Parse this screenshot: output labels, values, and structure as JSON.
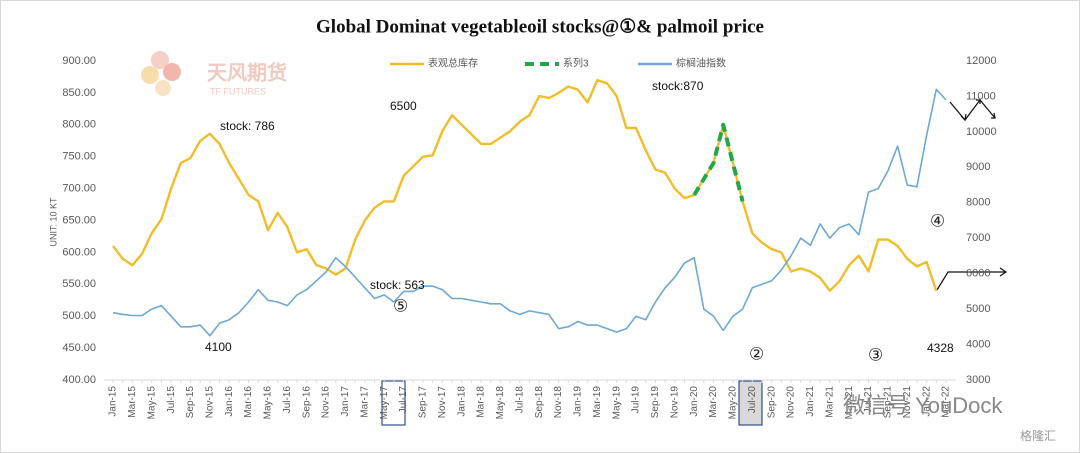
{
  "chart_data": {
    "type": "line",
    "title": "Global Dominat vegetableoil stocks@①& palmoil price",
    "y_axis_label": "UNIT: 10 KT",
    "categories": [
      "Jan-15",
      null,
      "Mar-15",
      null,
      "May-15",
      null,
      "Jul-15",
      null,
      "Sep-15",
      null,
      "Nov-15",
      null,
      "Jan-16",
      null,
      "Mar-16",
      null,
      "May-16",
      null,
      "Jul-16",
      null,
      "Sep-16",
      null,
      "Nov-16",
      null,
      "Jan-17",
      null,
      "Mar-17",
      null,
      "May-17",
      null,
      "Jul-17",
      null,
      "Sep-17",
      null,
      "Nov-17",
      null,
      "Jan-18",
      null,
      "Mar-18",
      null,
      "May-18",
      null,
      "Jul-18",
      null,
      "Sep-18",
      null,
      "Nov-18",
      null,
      "Jan-19",
      null,
      "Mar-19",
      null,
      "May-19",
      null,
      "Jul-19",
      null,
      "Sep-19",
      null,
      "Nov-19",
      null,
      "Jan-20",
      null,
      "Mar-20",
      null,
      "May-20",
      null,
      "Jul-20",
      null,
      "Sep-20",
      null,
      "Nov-20",
      null,
      "Jan-21",
      null,
      "Mar-21",
      null,
      "May-21",
      null,
      "Jul-21",
      null,
      "Sep-21",
      null,
      "Nov-21",
      null,
      "Jan-22",
      null,
      "Mar-22"
    ],
    "series": [
      {
        "name": "表观总库存",
        "color": "#f2bd2b",
        "axis": "y",
        "values": [
          610,
          590,
          580,
          598,
          630,
          652,
          700,
          740,
          748,
          775,
          786,
          770,
          740,
          715,
          690,
          680,
          635,
          662,
          640,
          600,
          605,
          580,
          575,
          565,
          575,
          620,
          650,
          670,
          680,
          680,
          720,
          735,
          750,
          752,
          790,
          815,
          800,
          785,
          770,
          770,
          780,
          790,
          805,
          815,
          845,
          842,
          850,
          860,
          855,
          835,
          870,
          865,
          845,
          795,
          795,
          760,
          730,
          725,
          700,
          685,
          690,
          715,
          740,
          800,
          740,
          680,
          630,
          615,
          605,
          600,
          570,
          575,
          570,
          560,
          540,
          555,
          580,
          595,
          570,
          620,
          620,
          610,
          590,
          578,
          585,
          540,
          null
        ]
      },
      {
        "name": "系列3",
        "color": "#22a84a",
        "axis": "y",
        "dashed": true,
        "values": [
          null,
          null,
          null,
          null,
          null,
          null,
          null,
          null,
          null,
          null,
          null,
          null,
          null,
          null,
          null,
          null,
          null,
          null,
          null,
          null,
          null,
          null,
          null,
          null,
          null,
          null,
          null,
          null,
          null,
          null,
          null,
          null,
          null,
          null,
          null,
          null,
          null,
          null,
          null,
          null,
          null,
          null,
          null,
          null,
          null,
          null,
          null,
          null,
          null,
          null,
          null,
          null,
          null,
          null,
          null,
          null,
          null,
          null,
          null,
          null,
          690,
          715,
          740,
          800,
          740,
          680,
          null,
          null,
          null,
          null,
          null,
          null,
          null,
          null,
          null,
          null,
          null,
          null,
          null,
          null,
          null,
          null,
          null,
          null,
          null,
          null,
          null
        ]
      },
      {
        "name": "棕榈油指数",
        "color": "#6fa8d6",
        "axis": "y2",
        "values": [
          4900,
          4850,
          4820,
          4820,
          5000,
          5100,
          4800,
          4500,
          4500,
          4550,
          4250,
          4600,
          4700,
          4900,
          5200,
          5550,
          5250,
          5200,
          5100,
          5400,
          5550,
          5800,
          6050,
          6450,
          6200,
          5900,
          5600,
          5300,
          5400,
          5200,
          5500,
          5500,
          5650,
          5650,
          5550,
          5300,
          5300,
          5250,
          5200,
          5150,
          5150,
          4950,
          4850,
          4950,
          4900,
          4850,
          4450,
          4500,
          4650,
          4550,
          4550,
          4450,
          4350,
          4450,
          4800,
          4700,
          5200,
          5600,
          5900,
          6300,
          6450,
          5000,
          4800,
          4400,
          4800,
          5000,
          5600,
          5700,
          5800,
          6100,
          6500,
          7000,
          6800,
          7400,
          7000,
          7300,
          7400,
          7100,
          8300,
          8400,
          8900,
          9600,
          8500,
          8450,
          9900,
          11200,
          10900
        ]
      }
    ],
    "ylim": [
      400,
      900
    ],
    "yticks": [
      {
        "value": 400,
        "label": "400.00"
      },
      {
        "value": 450,
        "label": "450.00"
      },
      {
        "value": 500,
        "label": "500.00"
      },
      {
        "value": 550,
        "label": "550.00"
      },
      {
        "value": 600,
        "label": "600.00"
      },
      {
        "value": 650,
        "label": "650.00"
      },
      {
        "value": 700,
        "label": "700.00"
      },
      {
        "value": 750,
        "label": "750.00"
      },
      {
        "value": 800,
        "label": "800.00"
      },
      {
        "value": 850,
        "label": "850.00"
      },
      {
        "value": 900,
        "label": "900.00"
      }
    ],
    "y2lim": [
      3000,
      12000
    ],
    "y2ticks": [
      3000,
      4000,
      5000,
      6000,
      7000,
      8000,
      9000,
      10000,
      11000,
      12000
    ],
    "grid": false,
    "legend": "top",
    "annotations": [
      "stock: 786",
      "6500",
      "stock:870",
      "stock: 563",
      "4100",
      "4328",
      "⑤",
      "②",
      "③",
      "④"
    ],
    "watermarks": [
      "天风期货",
      "TF FUTURES",
      "微信号 YouDock",
      "格隆汇"
    ]
  }
}
